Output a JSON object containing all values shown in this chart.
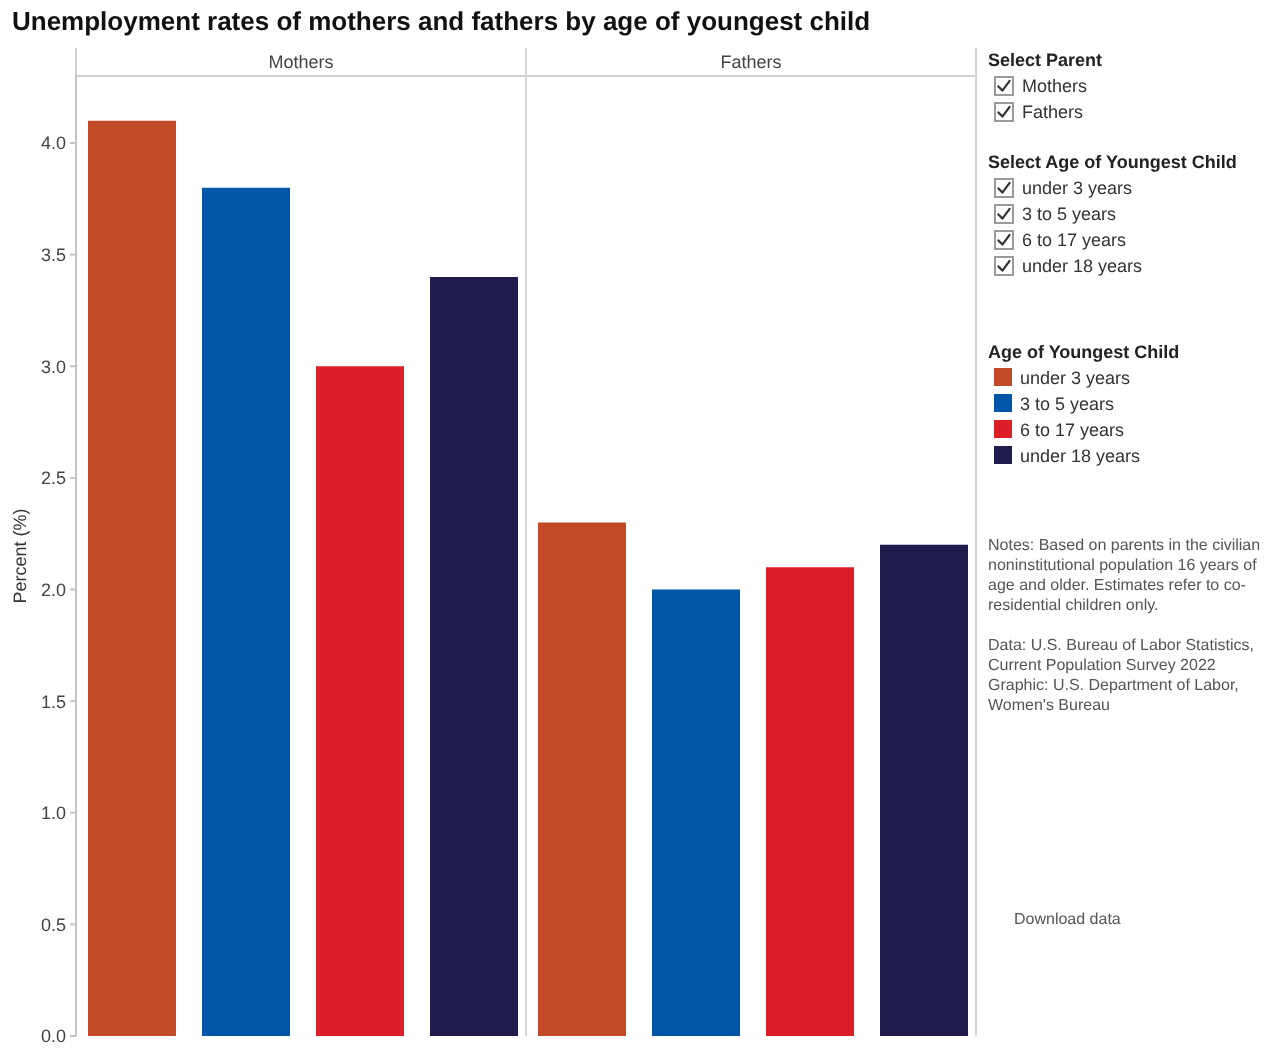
{
  "chart_data": {
    "type": "bar",
    "title": "Unemployment rates of mothers and fathers by age of youngest child",
    "ylabel": "Percent (%)",
    "legend_title": "Age of Youngest Child",
    "legend": "right",
    "categories": [
      "Mothers",
      "Fathers"
    ],
    "series": [
      {
        "name": "under 3 years",
        "color": "#c34a27",
        "values": [
          4.1,
          2.3
        ]
      },
      {
        "name": "3 to 5 years",
        "color": "#0057a8",
        "values": [
          3.8,
          2.0
        ]
      },
      {
        "name": "6 to 17 years",
        "color": "#dc1f26",
        "values": [
          3.0,
          2.1
        ]
      },
      {
        "name": "under 18 years",
        "color": "#1f1b4d",
        "values": [
          3.4,
          2.2
        ]
      }
    ],
    "ylim": [
      0,
      4.3
    ],
    "yticks": [
      {
        "value": 0,
        "label": "0.0"
      },
      0.5,
      {
        "value": 1,
        "label": "1.0"
      },
      1.5,
      {
        "value": 2,
        "label": "2.0"
      },
      2.5,
      {
        "value": 3,
        "label": "3.0"
      },
      3.5,
      {
        "value": 4,
        "label": "4.0"
      }
    ],
    "annotations": [
      "Select Parent",
      "Select Age of Youngest Child",
      "Notes: Based on parents in the civilian noninstitutional population 16 years of age and older. Estimates refer to co-residential children only.",
      "Data: U.S. Bureau of Labor Statistics, Current Population Survey 2022",
      "Graphic: U.S. Department of Labor, Women's Bureau",
      "Download data"
    ]
  }
}
